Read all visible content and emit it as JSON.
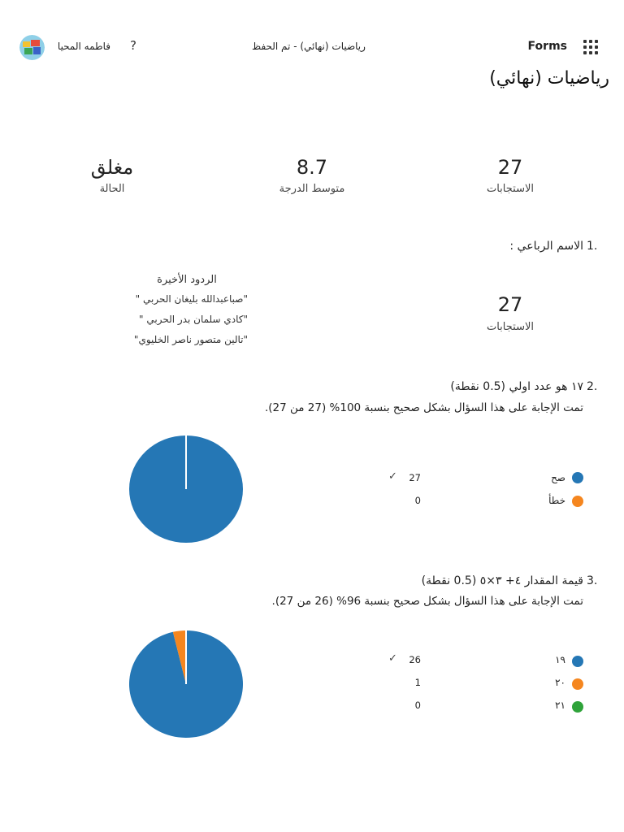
{
  "header": {
    "brand": "Forms",
    "doc_title": "رياضيات (نهائي)  -  تم الحفظ",
    "help_icon": "?",
    "user_name": "فاطمه المحيا"
  },
  "page_title": "رياضيات (نهائي)",
  "stats": {
    "responses": {
      "value": "27",
      "label": "الاستجابات"
    },
    "average": {
      "value": "8.7",
      "label": "متوسط الدرجة"
    },
    "status": {
      "value": "مغلق",
      "label": "الحالة"
    }
  },
  "q1": {
    "number": "1.",
    "text": "الاسم الرباعي :",
    "count": "27",
    "count_label": "الاستجابات",
    "recent_title": "الردود الأخيرة",
    "recent": [
      "\"صباعبدالله بليغان الحربي \"",
      "\"كادي سلمان بدر الحربي \"",
      "\"تالين متصور ناصر الخليوي\""
    ]
  },
  "q2": {
    "number": "2.",
    "text": "١٧ هو عدد اولي (0.5 نقطة)",
    "summary": "تمت الإجابة على هذا السؤال بشكل صحيح بنسبة 100% (27 من 27).",
    "options": [
      {
        "label": "صح",
        "count": "27",
        "correct": true,
        "color": "#2577b5"
      },
      {
        "label": "خطأ",
        "count": "0",
        "correct": false,
        "color": "#f5861f"
      }
    ]
  },
  "q3": {
    "number": "3.",
    "text": "قيمة المقدار ٤+ ٣×٥ (0.5 نقطة)",
    "summary": "تمت الإجابة على هذا السؤال بشكل صحيح بنسبة 96% (26 من 27).",
    "options": [
      {
        "label": "١٩",
        "count": "26",
        "correct": true,
        "color": "#2577b5"
      },
      {
        "label": "٢٠",
        "count": "1",
        "correct": false,
        "color": "#f5861f"
      },
      {
        "label": "٢١",
        "count": "0",
        "correct": false,
        "color": "#2fa33a"
      }
    ]
  },
  "chart_data": [
    {
      "type": "pie",
      "categories": [
        "صح",
        "خطأ"
      ],
      "values": [
        27,
        0
      ],
      "colors": [
        "#2577b5",
        "#f5861f"
      ]
    },
    {
      "type": "pie",
      "categories": [
        "١٩",
        "٢٠",
        "٢١"
      ],
      "values": [
        26,
        1,
        0
      ],
      "colors": [
        "#2577b5",
        "#f5861f",
        "#2fa33a"
      ]
    }
  ],
  "icons": {
    "app_launcher": "waffle-icon",
    "help": "question-icon",
    "check": "check-icon"
  }
}
